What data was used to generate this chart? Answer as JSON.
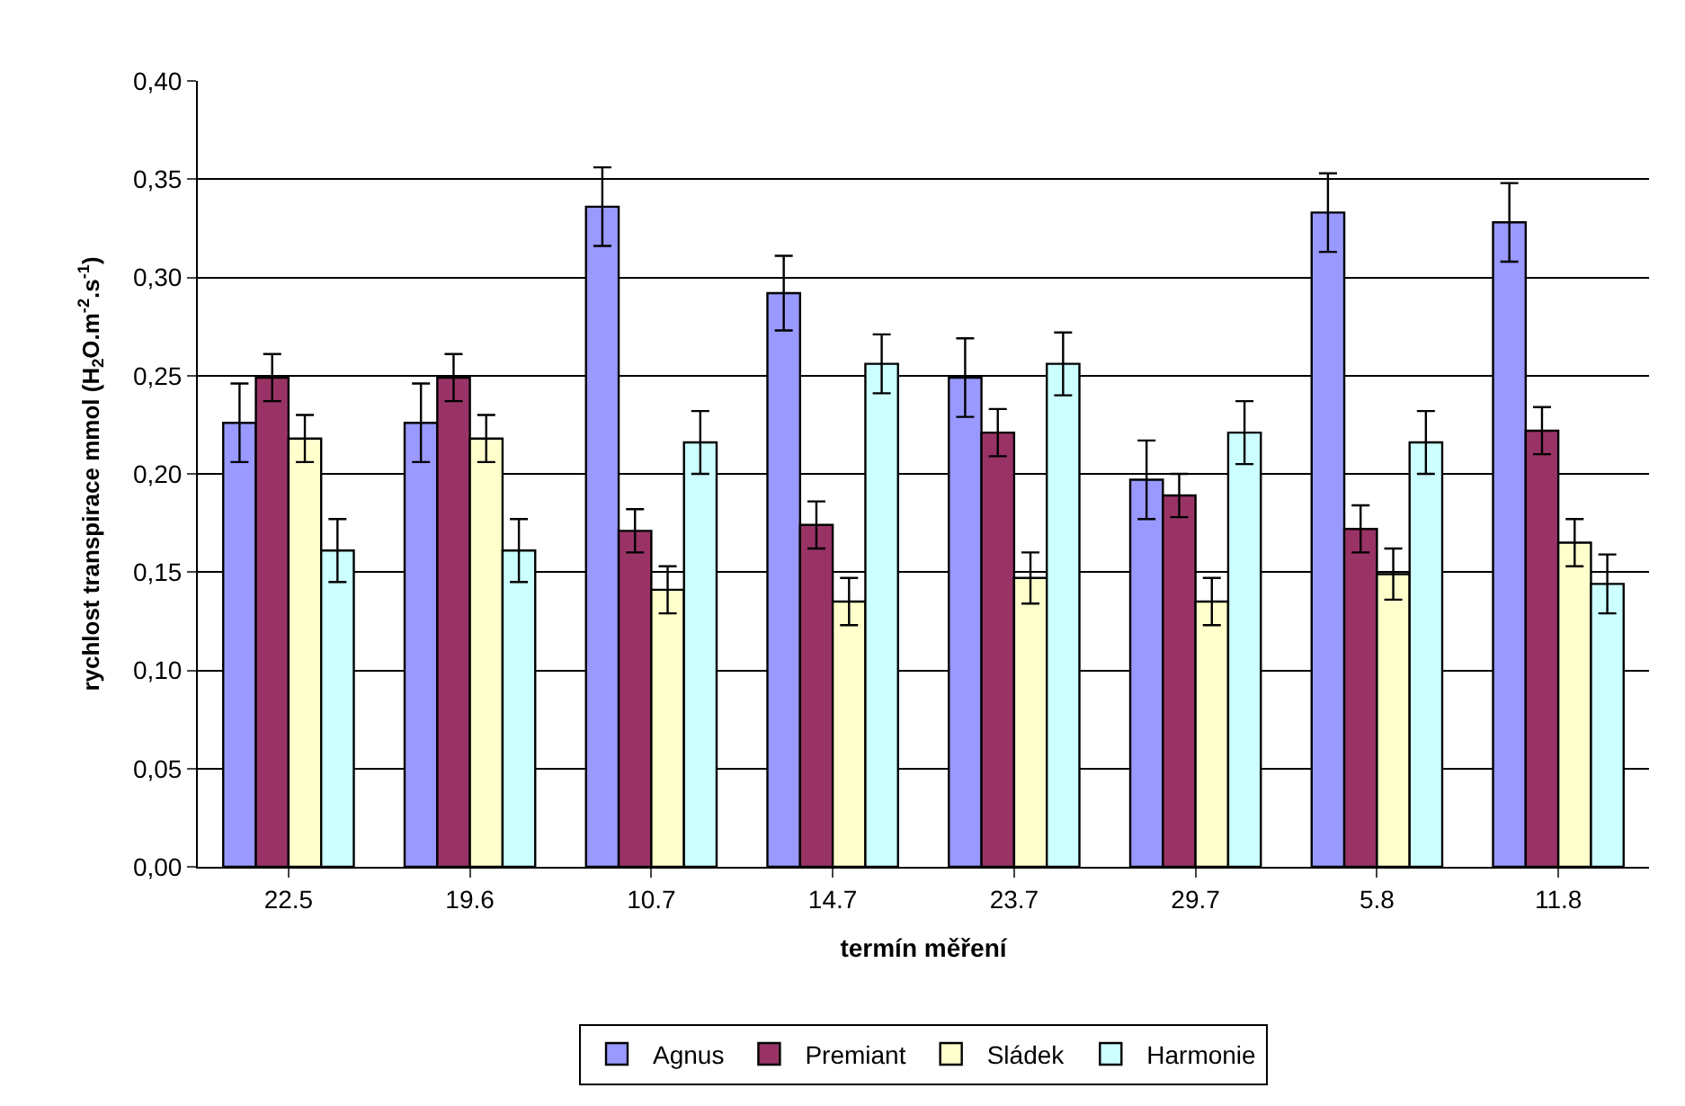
{
  "chart_data": {
    "type": "bar",
    "xlabel": "termín měření",
    "ylabel": "rychlost transpirace mmol (H$_{2}$O.m$^{-2}$.s$^{-1}$)",
    "categories": [
      "22.5",
      "19.6",
      "10.7",
      "14.7",
      "23.7",
      "29.7",
      "5.8",
      "11.8"
    ],
    "series": [
      {
        "name": "Agnus",
        "color": "#9999ff",
        "values": [
          0.226,
          0.226,
          0.336,
          0.292,
          0.249,
          0.197,
          0.333,
          0.328
        ],
        "errors": [
          0.02,
          0.02,
          0.02,
          0.019,
          0.02,
          0.02,
          0.02,
          0.02
        ]
      },
      {
        "name": "Premiant",
        "color": "#993366",
        "values": [
          0.249,
          0.249,
          0.171,
          0.174,
          0.221,
          0.189,
          0.172,
          0.222
        ],
        "errors": [
          0.012,
          0.012,
          0.011,
          0.012,
          0.012,
          0.011,
          0.012,
          0.012
        ]
      },
      {
        "name": "Sládek",
        "color": "#ffffcc",
        "values": [
          0.218,
          0.218,
          0.141,
          0.135,
          0.147,
          0.135,
          0.149,
          0.165
        ],
        "errors": [
          0.012,
          0.012,
          0.012,
          0.012,
          0.013,
          0.012,
          0.013,
          0.012
        ]
      },
      {
        "name": "Harmonie",
        "color": "#ccffff",
        "values": [
          0.161,
          0.161,
          0.216,
          0.256,
          0.256,
          0.221,
          0.216,
          0.144
        ],
        "errors": [
          0.016,
          0.016,
          0.016,
          0.015,
          0.016,
          0.016,
          0.016,
          0.015
        ]
      }
    ],
    "ylim": [
      0,
      0.4
    ],
    "yticks": [
      {
        "value": 0,
        "label": "0,00"
      },
      {
        "value": 0.05,
        "label": "0,05"
      },
      {
        "value": 0.1,
        "label": "0,10"
      },
      {
        "value": 0.15,
        "label": "0,15"
      },
      {
        "value": 0.2,
        "label": "0,20"
      },
      {
        "value": 0.25,
        "label": "0,25"
      },
      {
        "value": 0.3,
        "label": "0,30"
      },
      {
        "value": 0.35,
        "label": "0,35"
      },
      {
        "value": 0.4,
        "label": "0,40"
      }
    ],
    "grid": "y",
    "legend": "bottom"
  }
}
